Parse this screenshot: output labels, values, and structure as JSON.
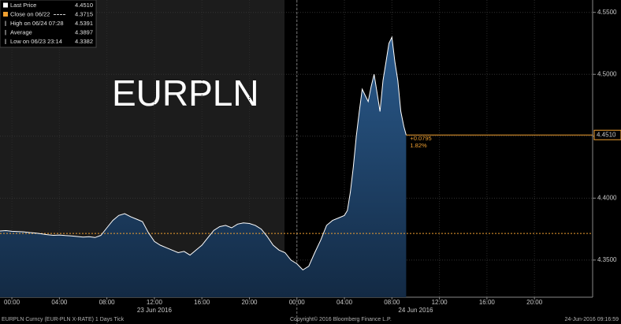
{
  "chart_data": {
    "type": "line",
    "symbol": "EURPLN",
    "x": [
      -1,
      -0.5,
      0,
      0.5,
      1,
      1.5,
      2,
      2.5,
      3,
      3.5,
      4,
      4.5,
      5,
      5.5,
      6,
      6.5,
      7,
      7.5,
      8,
      8.5,
      9,
      9.5,
      10,
      10.5,
      11,
      11.5,
      12,
      12.5,
      13,
      13.5,
      14,
      14.5,
      15,
      15.5,
      16,
      16.5,
      17,
      17.5,
      18,
      18.5,
      19,
      19.5,
      20,
      20.5,
      21,
      21.5,
      22,
      22.5,
      23,
      23.5,
      24,
      24.5,
      25,
      25.5,
      26,
      26.5,
      27,
      27.5,
      28,
      28.25,
      28.5,
      28.75,
      29,
      29.25,
      29.5,
      29.75,
      30,
      30.25,
      30.5,
      30.75,
      31,
      31.25,
      31.5,
      31.75,
      32,
      32.25,
      32.5,
      32.75,
      33,
      33.2
    ],
    "values": [
      4.3735,
      4.3738,
      4.3732,
      4.373,
      4.3728,
      4.3722,
      4.3718,
      4.3712,
      4.3705,
      4.37,
      4.3702,
      4.3698,
      4.3695,
      4.369,
      4.3685,
      4.3688,
      4.3682,
      4.37,
      4.376,
      4.382,
      4.386,
      4.3875,
      4.385,
      4.383,
      4.381,
      4.372,
      4.365,
      4.362,
      4.36,
      4.358,
      4.356,
      4.357,
      4.354,
      4.358,
      4.362,
      4.368,
      4.374,
      4.377,
      4.378,
      4.376,
      4.379,
      4.38,
      4.3795,
      4.378,
      4.375,
      4.369,
      4.362,
      4.358,
      4.356,
      4.35,
      4.347,
      4.342,
      4.345,
      4.356,
      4.366,
      4.378,
      4.382,
      4.384,
      4.386,
      4.39,
      4.405,
      4.425,
      4.45,
      4.47,
      4.488,
      4.483,
      4.478,
      4.49,
      4.5,
      4.485,
      4.47,
      4.495,
      4.51,
      4.525,
      4.53,
      4.51,
      4.495,
      4.47,
      4.458,
      4.451
    ],
    "color": "#ffffff",
    "fill": "#1f4a78",
    "xlim": [
      -1,
      48.9
    ],
    "xticks": [
      {
        "value": 0,
        "label": "00:00"
      },
      {
        "value": 4,
        "label": "04:00"
      },
      {
        "value": 8,
        "label": "08:00"
      },
      {
        "value": 12,
        "label": "12:00"
      },
      {
        "value": 16,
        "label": "16:00"
      },
      {
        "value": 20,
        "label": "20:00"
      },
      {
        "value": 24,
        "label": "00:00"
      },
      {
        "value": 28,
        "label": "04:00"
      },
      {
        "value": 32,
        "label": "08:00"
      },
      {
        "value": 36,
        "label": "12:00"
      },
      {
        "value": 40,
        "label": "16:00"
      },
      {
        "value": 44,
        "label": "20:00"
      }
    ],
    "date_labels": [
      {
        "value": 12,
        "label": "23 Jun 2016"
      },
      {
        "value": 34,
        "label": "24 Jun 2016"
      }
    ],
    "ylim": [
      4.32,
      4.56
    ],
    "yticks": [
      {
        "value": 4.35,
        "label": "4.3500"
      },
      {
        "value": 4.4,
        "label": "4.4000"
      },
      {
        "value": 4.45,
        "label": "4.4500"
      },
      {
        "value": 4.5,
        "label": "4.5000"
      },
      {
        "value": 4.55,
        "label": "4.5500"
      }
    ],
    "last_tick": {
      "value": 4.451,
      "label": "4.4510"
    },
    "grid": true,
    "legend": [
      {
        "name": "Last Price",
        "color": "#ffffff",
        "value": 4.451,
        "value_label": "4.4510"
      },
      {
        "name": "Close on 06/22",
        "color": "#f0a030",
        "value": 4.3715,
        "value_label": "4.3715"
      },
      {
        "name": "High on 06/24 07:28",
        "value": 4.5391,
        "value_label": "4.5391"
      },
      {
        "name": "Average",
        "value": 4.3897,
        "value_label": "4.3897"
      },
      {
        "name": "Low on 06/23 23:14",
        "value": 4.3382,
        "value_label": "4.3382"
      }
    ],
    "change": {
      "value": 0.0795,
      "label": "+0.0795"
    },
    "change_pct": {
      "value": 1.82,
      "label": "1.82%"
    },
    "footer_left": "EURPLN Curncy (EUR-PLN X-RATE) 1 Days  Tick",
    "footer_center": "Copyright© 2016 Bloomberg Finance L.P.",
    "footer_right": "24-Jun-2016 09:16:59"
  }
}
